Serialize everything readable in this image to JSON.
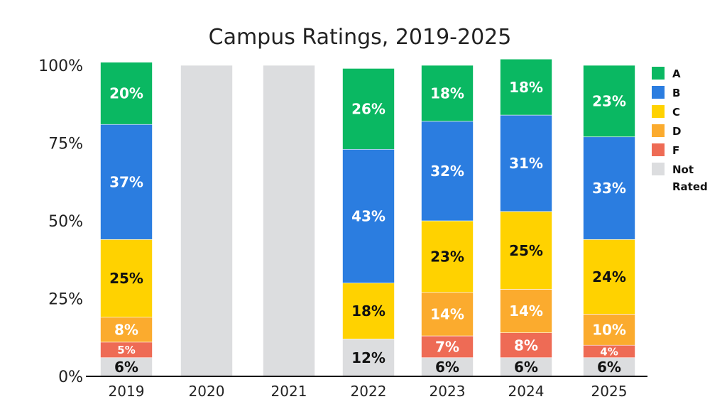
{
  "chart_data": {
    "type": "bar",
    "stacked": true,
    "title": "Campus Ratings, 2019-2025",
    "xlabel": "",
    "ylabel": "",
    "ylim": [
      0,
      100
    ],
    "y_ticks": [
      "0%",
      "25%",
      "50%",
      "75%",
      "100%"
    ],
    "categories": [
      "2019",
      "2020",
      "2021",
      "2022",
      "2023",
      "2024",
      "2025"
    ],
    "stack_order_bottom_to_top": [
      "Not Rated",
      "F",
      "D",
      "C",
      "B",
      "A"
    ],
    "series": [
      {
        "name": "Not Rated",
        "color": "#dcdddf",
        "label_color": "#111111",
        "values": [
          6,
          100,
          100,
          12,
          6,
          6,
          6
        ],
        "labels": [
          "6%",
          "",
          "",
          "12%",
          "6%",
          "6%",
          "6%"
        ]
      },
      {
        "name": "F",
        "color": "#ee6b55",
        "label_color": "#ffffff",
        "values": [
          5,
          0,
          0,
          0,
          7,
          8,
          4
        ],
        "labels": [
          "5%",
          "",
          "",
          "",
          "7%",
          "8%",
          "4%"
        ]
      },
      {
        "name": "D",
        "color": "#fbab2e",
        "label_color": "#ffffff",
        "values": [
          8,
          0,
          0,
          0,
          14,
          14,
          10
        ],
        "labels": [
          "8%",
          "",
          "",
          "",
          "14%",
          "14%",
          "10%"
        ]
      },
      {
        "name": "C",
        "color": "#ffd200",
        "label_color": "#111111",
        "values": [
          25,
          0,
          0,
          18,
          23,
          25,
          24
        ],
        "labels": [
          "25%",
          "",
          "",
          "18%",
          "23%",
          "25%",
          "24%"
        ]
      },
      {
        "name": "B",
        "color": "#2b7de0",
        "label_color": "#ffffff",
        "values": [
          37,
          0,
          0,
          43,
          32,
          31,
          33
        ],
        "labels": [
          "37%",
          "",
          "",
          "43%",
          "32%",
          "31%",
          "33%"
        ]
      },
      {
        "name": "A",
        "color": "#0ab862",
        "label_color": "#ffffff",
        "values": [
          20,
          0,
          0,
          26,
          18,
          18,
          23
        ],
        "labels": [
          "20%",
          "",
          "",
          "26%",
          "18%",
          "18%",
          "23%"
        ]
      }
    ],
    "legend": {
      "placement": "right",
      "entries": [
        {
          "name": "A",
          "color": "#0ab862",
          "lines": [
            "A"
          ]
        },
        {
          "name": "B",
          "color": "#2b7de0",
          "lines": [
            "B"
          ]
        },
        {
          "name": "C",
          "color": "#ffd200",
          "lines": [
            "C"
          ]
        },
        {
          "name": "D",
          "color": "#fbab2e",
          "lines": [
            "D"
          ]
        },
        {
          "name": "F",
          "color": "#ee6b55",
          "lines": [
            "F"
          ]
        },
        {
          "name": "Not Rated",
          "color": "#dcdddf",
          "lines": [
            "Not",
            "Rated"
          ]
        }
      ]
    }
  }
}
